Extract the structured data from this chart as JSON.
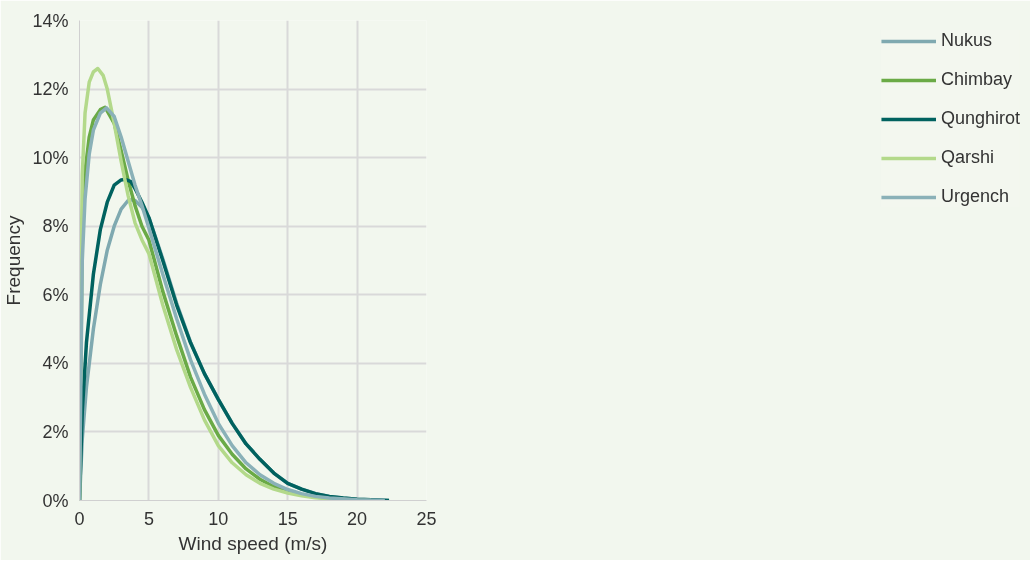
{
  "chart_data": {
    "type": "line",
    "xlabel": "Wind speed (m/s)",
    "ylabel": "Frequency",
    "xlim": [
      0,
      25
    ],
    "xticks": [
      0,
      5,
      10,
      15,
      20,
      25
    ],
    "ylim": [
      0,
      14
    ],
    "yticks": [
      {
        "value": 0,
        "label": "0%"
      },
      {
        "value": 2,
        "label": "2%"
      },
      {
        "value": 4,
        "label": "4%"
      },
      {
        "value": 6,
        "label": "6%"
      },
      {
        "value": 8,
        "label": "8%"
      },
      {
        "value": 10,
        "label": "10%"
      },
      {
        "value": 12,
        "label": "12%"
      },
      {
        "value": 14,
        "label": "14%"
      }
    ],
    "grid": true,
    "legend": "right",
    "marker": "none",
    "line_style": "solid",
    "series": [
      {
        "name": "Nukus",
        "color": "#7fa9b0",
        "x": [
          0,
          0.2,
          0.5,
          1,
          1.5,
          2,
          2.5,
          3,
          3.5,
          3.75,
          4,
          4.5,
          5,
          6,
          7,
          8,
          9,
          10,
          11,
          12,
          13,
          14,
          15,
          16,
          17,
          18,
          19,
          20,
          21,
          22.3
        ],
        "values": [
          0,
          1.8,
          3.3,
          5.0,
          6.3,
          7.3,
          8.0,
          8.5,
          8.75,
          8.77,
          8.75,
          8.55,
          8.25,
          7.05,
          5.75,
          4.62,
          3.7,
          2.95,
          2.25,
          1.65,
          1.2,
          0.8,
          0.5,
          0.33,
          0.2,
          0.12,
          0.07,
          0.04,
          0.02,
          0
        ]
      },
      {
        "name": "Chimbay",
        "color": "#6aaa46",
        "x": [
          0,
          0.2,
          0.4,
          0.7,
          1,
          1.5,
          1.84,
          2.5,
          3,
          3.5,
          4,
          4.5,
          5,
          6,
          7,
          8,
          9,
          10,
          11,
          12,
          13,
          14,
          15,
          16,
          17,
          18,
          20,
          21
        ],
        "values": [
          0,
          8,
          9.6,
          10.6,
          11.1,
          11.4,
          11.47,
          11.0,
          10.2,
          9.35,
          8.6,
          8.0,
          7.6,
          6.1,
          4.8,
          3.6,
          2.65,
          1.9,
          1.35,
          0.92,
          0.62,
          0.4,
          0.27,
          0.17,
          0.1,
          0.06,
          0.02,
          0
        ]
      },
      {
        "name": "Qunghirot",
        "color": "#00625f",
        "x": [
          0,
          0.2,
          0.5,
          1,
          1.5,
          2,
          2.5,
          3,
          3.3,
          3.7,
          4,
          4.5,
          5,
          6,
          7,
          8,
          9,
          10,
          11,
          12,
          13,
          14,
          15,
          16,
          17,
          18,
          19,
          20,
          21,
          22.3
        ],
        "values": [
          0,
          2.6,
          4.6,
          6.6,
          7.9,
          8.7,
          9.2,
          9.35,
          9.37,
          9.3,
          9.1,
          8.7,
          8.25,
          7.0,
          5.7,
          4.6,
          3.7,
          2.95,
          2.25,
          1.65,
          1.2,
          0.8,
          0.5,
          0.33,
          0.2,
          0.12,
          0.07,
          0.04,
          0.02,
          0
        ]
      },
      {
        "name": "Qarshi",
        "color": "#b3d98a",
        "x": [
          0,
          0.1,
          0.2,
          0.4,
          0.7,
          1,
          1.32,
          1.7,
          2,
          2.5,
          3,
          3.5,
          4,
          4.5,
          5,
          6,
          7,
          8,
          9,
          10,
          11,
          12,
          13,
          14,
          15,
          16,
          17,
          18,
          20,
          21
        ],
        "values": [
          0,
          6,
          9.5,
          11.3,
          12.2,
          12.5,
          12.6,
          12.4,
          12.0,
          11.0,
          9.9,
          8.9,
          8.1,
          7.6,
          7.2,
          5.7,
          4.4,
          3.3,
          2.35,
          1.6,
          1.1,
          0.75,
          0.5,
          0.33,
          0.22,
          0.14,
          0.08,
          0.05,
          0.01,
          0
        ]
      },
      {
        "name": "Urgench",
        "color": "#8ab1b8",
        "x": [
          0,
          0.2,
          0.4,
          0.7,
          1,
          1.5,
          1.95,
          2.5,
          3,
          3.5,
          4,
          4.5,
          5,
          6,
          7,
          8,
          9,
          10,
          11,
          12,
          13,
          14,
          15,
          16,
          17,
          18,
          20,
          22
        ],
        "values": [
          0,
          7,
          8.8,
          10.1,
          10.8,
          11.3,
          11.45,
          11.2,
          10.6,
          9.9,
          9.2,
          8.6,
          7.95,
          6.6,
          5.3,
          4.1,
          3.1,
          2.25,
          1.6,
          1.1,
          0.75,
          0.5,
          0.32,
          0.2,
          0.12,
          0.07,
          0.02,
          0
        ]
      }
    ]
  }
}
